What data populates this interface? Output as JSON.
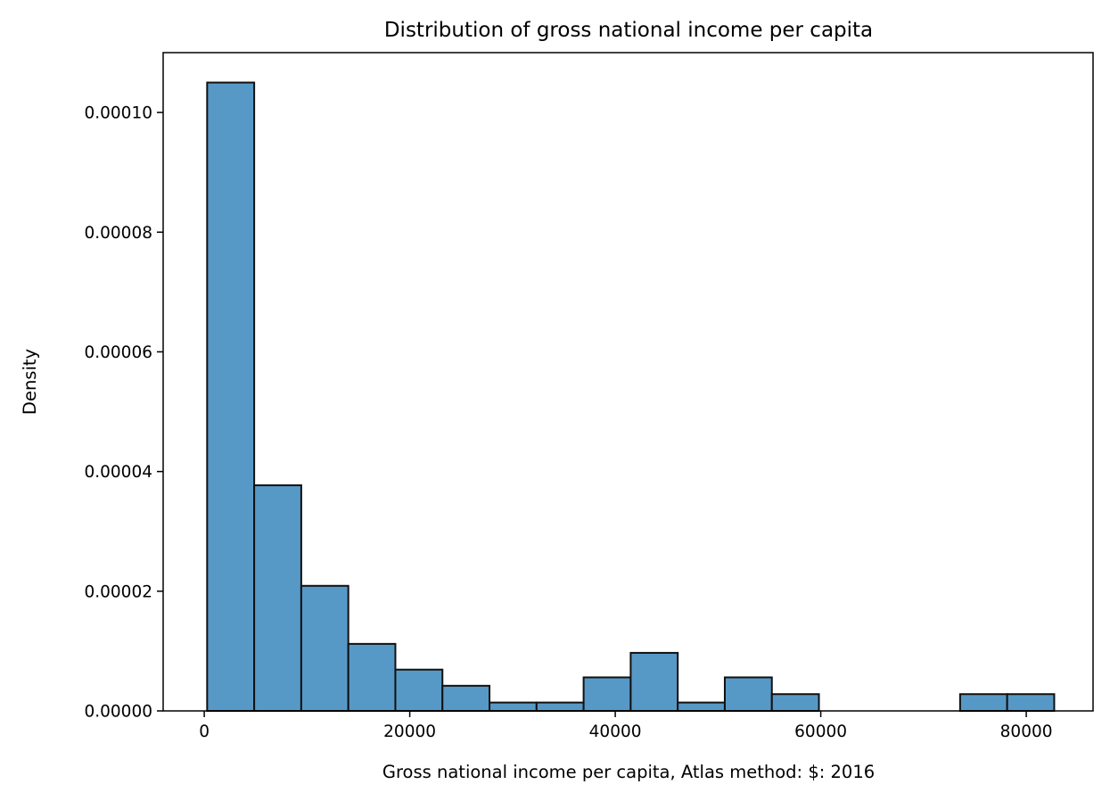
{
  "chart_data": {
    "type": "histogram",
    "title": "Distribution of gross national income per capita",
    "xlabel": "Gross national income per capita, Atlas method: $: 2016",
    "ylabel": "Density",
    "xlim": [
      -4000,
      86500
    ],
    "ylim": [
      0,
      0.00011
    ],
    "xticks": [
      0,
      20000,
      40000,
      60000,
      80000
    ],
    "xtick_labels": [
      "0",
      "20000",
      "40000",
      "60000",
      "80000"
    ],
    "yticks": [
      0,
      2e-05,
      4e-05,
      6e-05,
      8e-05,
      0.0001
    ],
    "ytick_labels": [
      "0.00000",
      "0.00002",
      "0.00004",
      "0.00006",
      "0.00008",
      "0.00010"
    ],
    "bin_edges": [
      280,
      4860,
      9440,
      14020,
      18600,
      23180,
      27760,
      32340,
      36920,
      41500,
      46080,
      50660,
      55240,
      59820,
      64400,
      68980,
      73560,
      78140,
      82720
    ],
    "density": [
      0.000105,
      3.77e-05,
      2.09e-05,
      1.12e-05,
      6.9e-06,
      4.2e-06,
      1.4e-06,
      1.4e-06,
      5.6e-06,
      9.7e-06,
      1.4e-06,
      5.6e-06,
      2.8e-06,
      0,
      0,
      0,
      2.8e-06,
      2.8e-06
    ],
    "bar_color": "#5799c6",
    "edge_color": "#111111",
    "grid": false,
    "legend": false
  }
}
